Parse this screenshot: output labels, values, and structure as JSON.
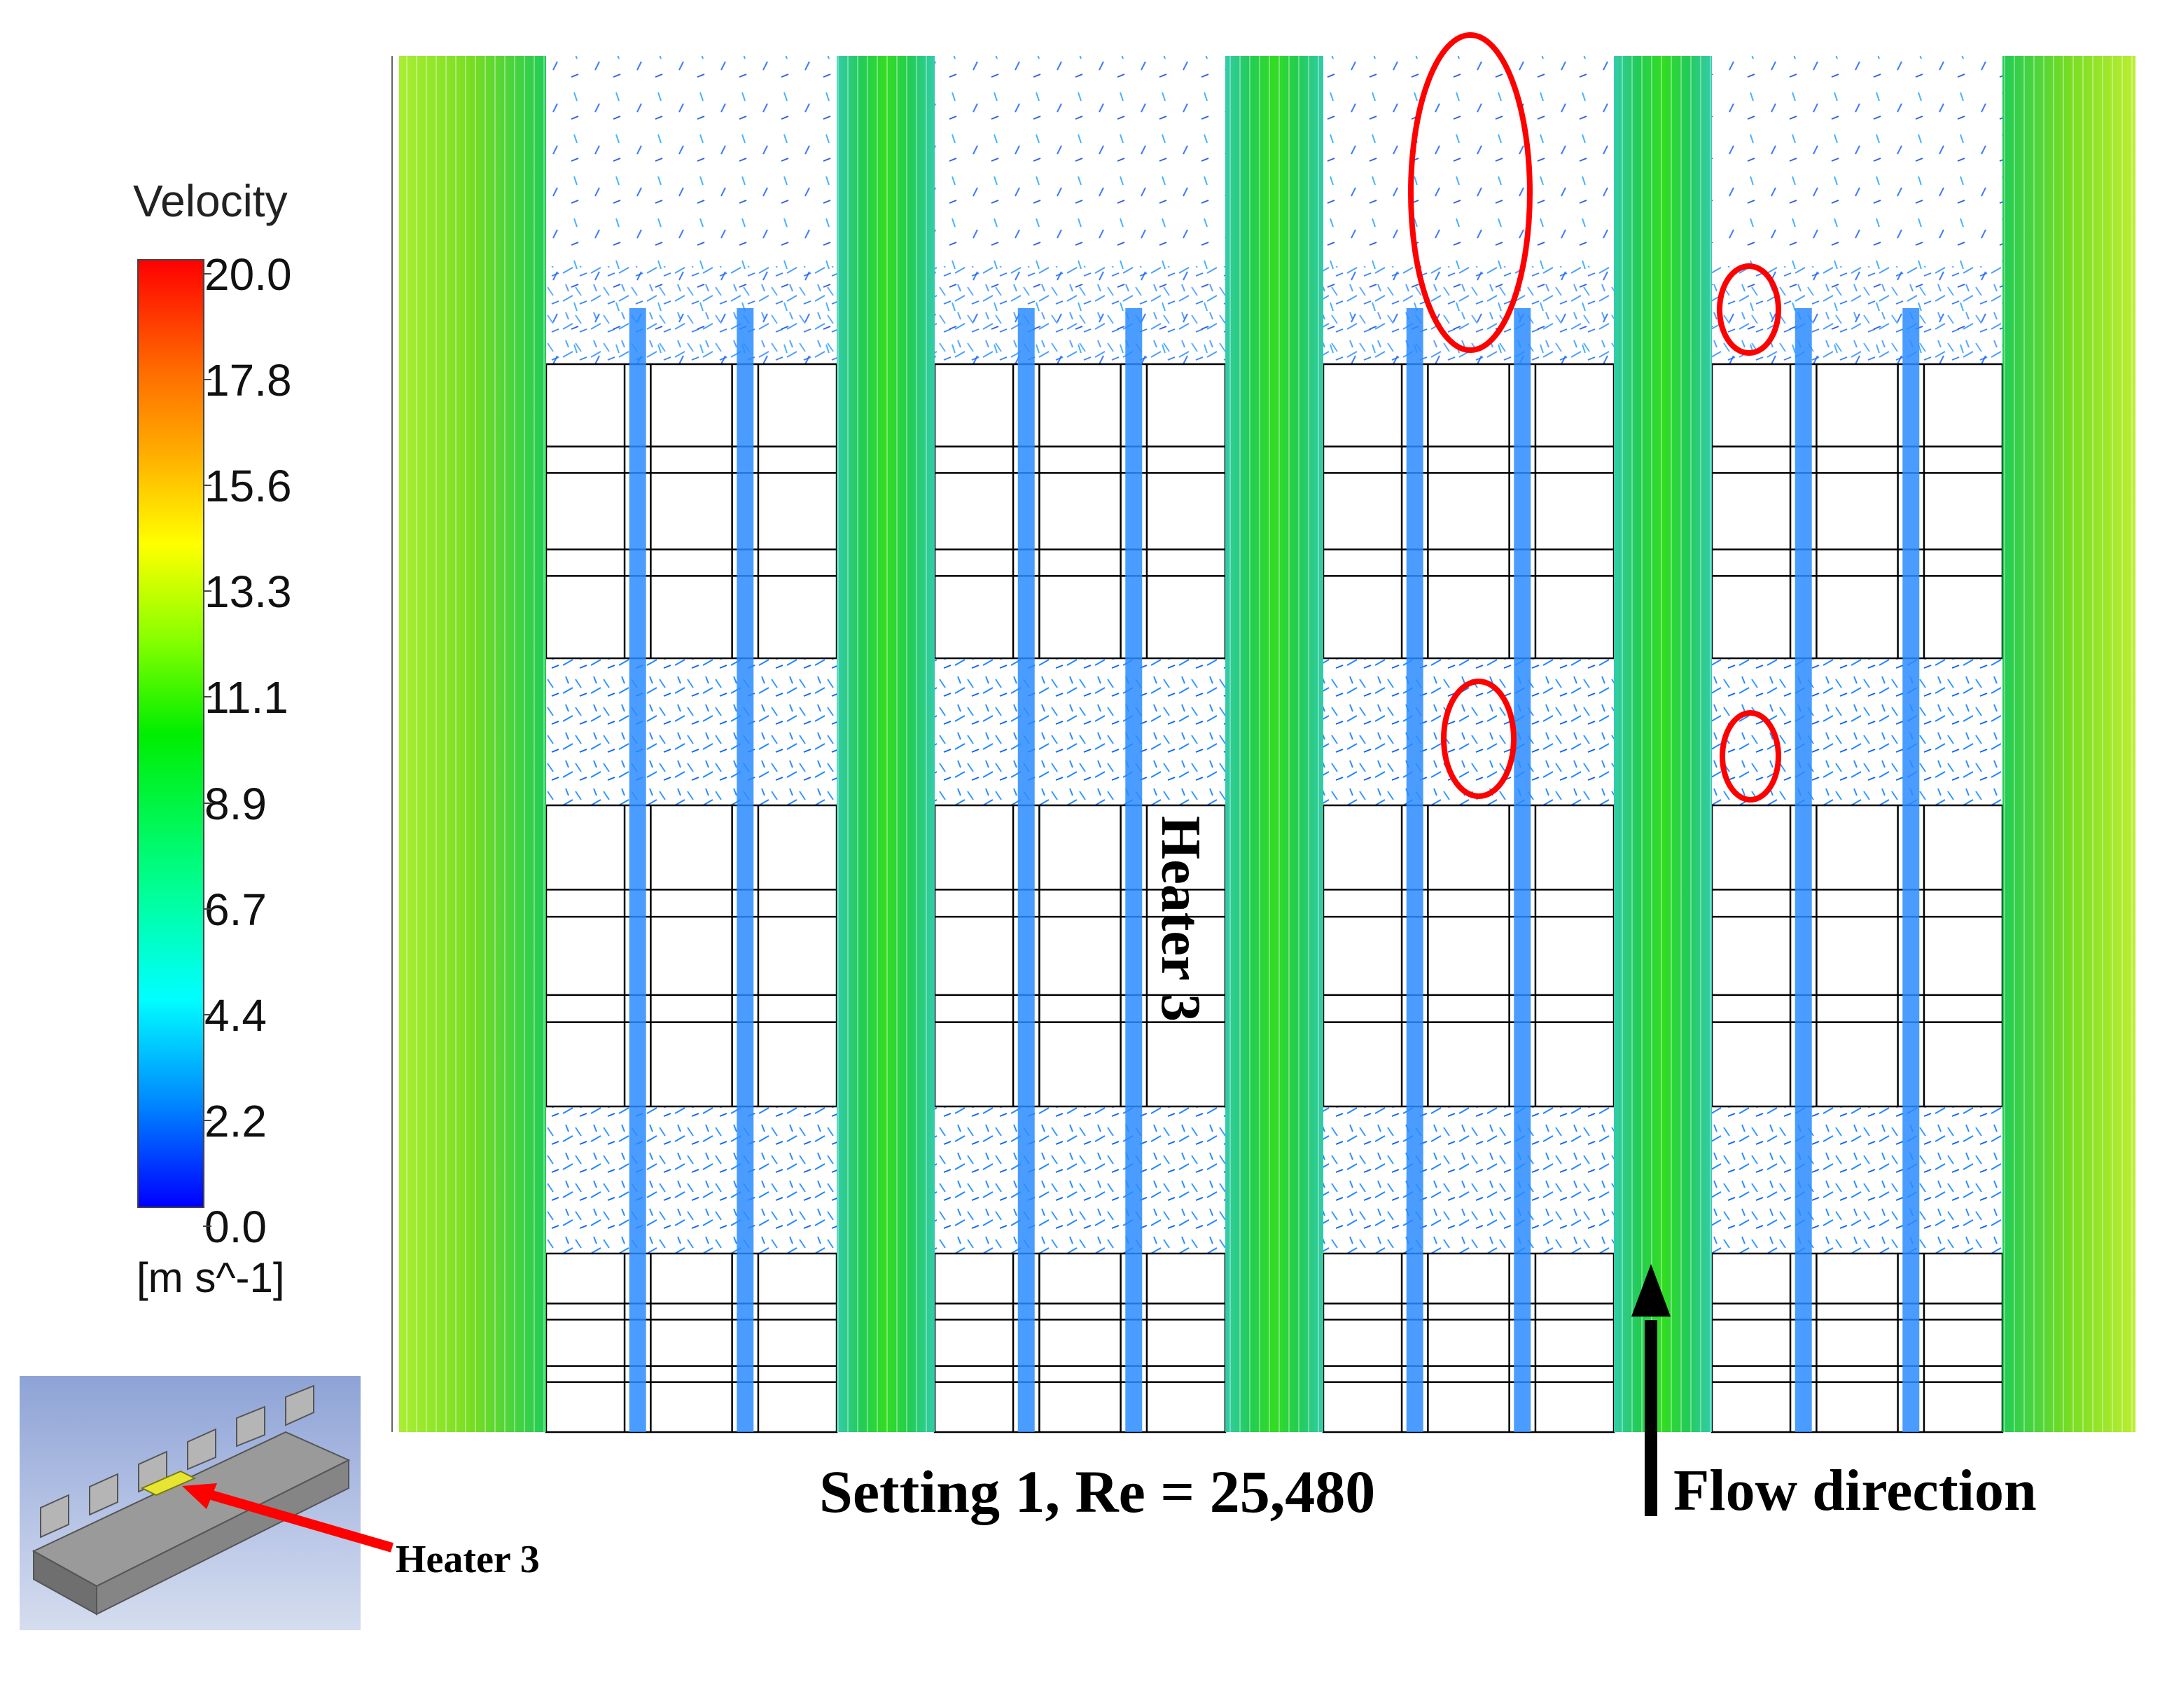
{
  "legend": {
    "title": "Velocity",
    "unit": "[m s^-1]",
    "ticks": [
      "20.0",
      "17.8",
      "15.6",
      "13.3",
      "11.1",
      "8.9",
      "6.7",
      "4.4",
      "2.2",
      "0.0"
    ],
    "min": 0.0,
    "max": 20.0,
    "colors": [
      "#0000ff",
      "#00ffff",
      "#00ee00",
      "#ffff00",
      "#ff0000"
    ]
  },
  "annotations": {
    "caption": "Setting 1, Re = 25,480",
    "flow_direction": "Flow direction",
    "heater_label": "Heater 3",
    "inset_label": "Heater 3"
  },
  "colors": {
    "highlight": "#ff0000",
    "jet": "#22cc44",
    "recirculation": "#1e88ff",
    "mesh": "#000000"
  }
}
